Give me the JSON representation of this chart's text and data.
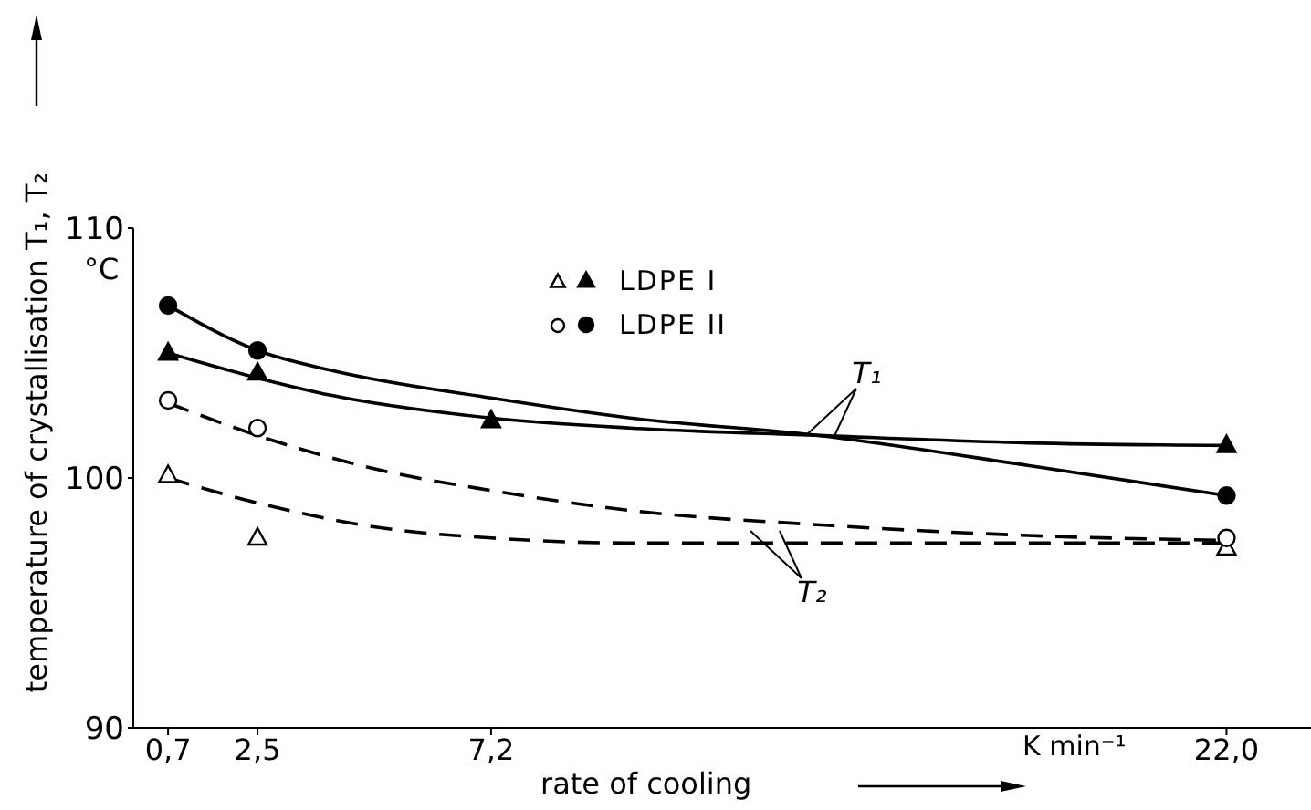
{
  "chart_data": {
    "type": "scatter",
    "xlabel": "rate of cooling",
    "ylabel": "temperature of crystallisation T₁, T₂",
    "xlim": [
      0,
      23.7
    ],
    "ylim": [
      90,
      110
    ],
    "xticks": [
      {
        "value": 0.7,
        "label": "0,7"
      },
      {
        "value": 2.5,
        "label": "2,5"
      },
      {
        "value": 7.2,
        "label": "7,2"
      },
      {
        "value": 22,
        "label": "22,0"
      }
    ],
    "yticks": [
      90,
      100,
      110
    ],
    "grid": false,
    "legend": "top",
    "annotations": [
      "°C",
      "K min⁻¹",
      {
        "text": "T₁",
        "x": 13.8,
        "y": 101.7
      },
      {
        "text": "T₂",
        "x": 12.7,
        "y": 97.9
      }
    ],
    "series": [
      {
        "name": "LDPE I",
        "type": "scatter",
        "marker": "triangle",
        "color": "#000000",
        "x": [
          0.7,
          2.5,
          7.2,
          22
        ],
        "values": [
          105.0,
          104.2,
          102.3,
          101.3
        ]
      },
      {
        "type": "scatter",
        "marker": "triangle",
        "color": "#000000",
        "x": [
          0.7,
          2.5,
          22
        ],
        "values": [
          100.1,
          97.6,
          97.2
        ]
      },
      {
        "name": "LDPE II",
        "type": "scatter",
        "marker": "circle",
        "color": "#000000",
        "x": [
          0.7,
          2.5,
          22
        ],
        "values": [
          106.9,
          105.1,
          99.3
        ]
      },
      {
        "type": "scatter",
        "marker": "circle",
        "color": "#000000",
        "x": [
          0.7,
          2.5,
          22
        ],
        "values": [
          103.1,
          102.0,
          97.6
        ]
      },
      {
        "type": "line",
        "marker": "none",
        "line_style": "solid",
        "color": "#000000",
        "x": [
          0.7,
          2.5,
          4,
          7.2,
          10,
          13.8,
          18,
          22
        ],
        "values": [
          106.9,
          105.1,
          104.3,
          103.2,
          102.4,
          101.7,
          100.5,
          99.3
        ]
      },
      {
        "type": "line",
        "marker": "none",
        "line_style": "solid",
        "color": "#000000",
        "x": [
          0.7,
          2.5,
          4,
          7.2,
          10,
          13.8,
          18,
          22
        ],
        "values": [
          105.0,
          104.0,
          103.3,
          102.4,
          102.0,
          101.7,
          101.4,
          101.3
        ]
      },
      {
        "type": "line",
        "marker": "none",
        "line_style": "dashed",
        "color": "#000000",
        "x": [
          0.7,
          2.5,
          5,
          7.2,
          10,
          14,
          18,
          22
        ],
        "values": [
          103.0,
          101.7,
          100.3,
          99.5,
          98.7,
          98.1,
          97.7,
          97.5
        ]
      },
      {
        "type": "line",
        "marker": "none",
        "line_style": "dashed",
        "color": "#000000",
        "x": [
          0.7,
          2.5,
          5,
          7.2,
          10,
          14,
          18,
          22
        ],
        "values": [
          100.0,
          99.0,
          98.0,
          97.6,
          97.4,
          97.4,
          97.4,
          97.4
        ]
      }
    ]
  }
}
